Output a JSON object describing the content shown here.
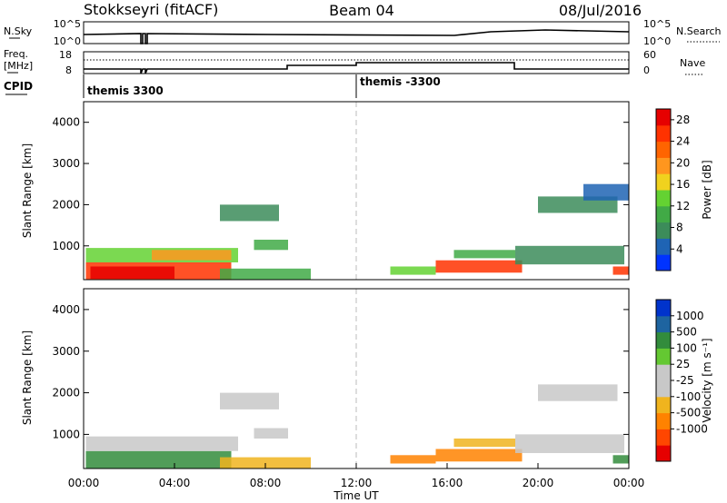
{
  "header": {
    "station": "Stokkseyri (fitACF)",
    "beam": "Beam 04",
    "date": "08/Jul/2016"
  },
  "noise_panel": {
    "left_label": "N.Sky",
    "right_label": "N.Search",
    "left_ticks": [
      "10^5",
      "10^0"
    ],
    "right_ticks": [
      "10^5",
      "10^0"
    ]
  },
  "freq_panel": {
    "left_label_1": "Freq.",
    "left_label_2": "[MHz]",
    "right_label": "Nave",
    "left_ticks": [
      "18",
      "8"
    ],
    "right_ticks": [
      "60",
      "0"
    ]
  },
  "cpid": {
    "label": "CPID",
    "segments": [
      "themis 3300",
      "themis -3300"
    ]
  },
  "colors": {
    "power_scale": [
      "#0033ff",
      "#1f64b4",
      "#3c8c5a",
      "#41aa46",
      "#64d232",
      "#f0d21e",
      "#ff961e",
      "#ff6400",
      "#ff3200",
      "#e60000"
    ],
    "velocity_scale": [
      "#e60000",
      "#ff4600",
      "#ff8200",
      "#f0b41e",
      "#c8c8c8",
      "#c8c8c8",
      "#64c832",
      "#328c3c",
      "#1e64a0",
      "#0033cc"
    ]
  },
  "chart_data": [
    {
      "type": "heatmap",
      "name": "Power",
      "xlabel": "",
      "ylabel": "Slant Range [km]",
      "xlim_hours": [
        0,
        24
      ],
      "ylim": [
        180,
        4500
      ],
      "yticks": [
        "1000",
        "2000",
        "3000",
        "4000"
      ],
      "colorbar_label": "Power [dB]",
      "colorbar_ticks": [
        "4",
        "8",
        "12",
        "16",
        "20",
        "24",
        "28"
      ],
      "colorbar_range": [
        0,
        30
      ],
      "blobs": [
        {
          "t0": 0.1,
          "t1": 6.5,
          "r0": 180,
          "r1": 600,
          "v": 24
        },
        {
          "t0": 0.3,
          "t1": 4.0,
          "r0": 200,
          "r1": 500,
          "v": 29
        },
        {
          "t0": 0.1,
          "t1": 6.8,
          "r0": 600,
          "r1": 950,
          "v": 13
        },
        {
          "t0": 3.0,
          "t1": 6.5,
          "r0": 650,
          "r1": 900,
          "v": 18
        },
        {
          "t0": 6.0,
          "t1": 10.0,
          "r0": 180,
          "r1": 450,
          "v": 9
        },
        {
          "t0": 6.0,
          "t1": 8.6,
          "r0": 1600,
          "r1": 2000,
          "v": 6
        },
        {
          "t0": 7.5,
          "t1": 9.0,
          "r0": 900,
          "r1": 1150,
          "v": 9
        },
        {
          "t0": 13.5,
          "t1": 15.5,
          "r0": 300,
          "r1": 500,
          "v": 12
        },
        {
          "t0": 15.5,
          "t1": 19.3,
          "r0": 350,
          "r1": 650,
          "v": 26
        },
        {
          "t0": 16.3,
          "t1": 19.0,
          "r0": 700,
          "r1": 900,
          "v": 11
        },
        {
          "t0": 19.0,
          "t1": 23.8,
          "r0": 550,
          "r1": 1000,
          "v": 7
        },
        {
          "t0": 20.0,
          "t1": 23.5,
          "r0": 1800,
          "r1": 2200,
          "v": 6
        },
        {
          "t0": 22.0,
          "t1": 24.0,
          "r0": 2100,
          "r1": 2500,
          "v": 4
        },
        {
          "t0": 23.3,
          "t1": 24.0,
          "r0": 300,
          "r1": 500,
          "v": 24
        }
      ]
    },
    {
      "type": "heatmap",
      "name": "Velocity",
      "xlabel": "Time UT",
      "ylabel": "Slant Range [km]",
      "xlim_hours": [
        0,
        24
      ],
      "xticks": [
        "00:00",
        "04:00",
        "08:00",
        "12:00",
        "16:00",
        "20:00",
        "00:00"
      ],
      "ylim": [
        180,
        4500
      ],
      "yticks": [
        "1000",
        "2000",
        "3000",
        "4000"
      ],
      "colorbar_label": "Velocity [m s⁻¹]",
      "colorbar_ticks": [
        "1000",
        "500",
        "100",
        "25",
        "-25",
        "-100",
        "-500",
        "-1000"
      ],
      "blobs": [
        {
          "t0": 0.1,
          "t1": 6.5,
          "r0": 180,
          "r1": 600,
          "v": 150
        },
        {
          "t0": 0.1,
          "t1": 6.8,
          "r0": 600,
          "r1": 950,
          "v": 0
        },
        {
          "t0": 6.0,
          "t1": 10.0,
          "r0": 180,
          "r1": 450,
          "v": -80
        },
        {
          "t0": 6.0,
          "t1": 8.6,
          "r0": 1600,
          "r1": 2000,
          "v": 0
        },
        {
          "t0": 7.5,
          "t1": 9.0,
          "r0": 900,
          "r1": 1150,
          "v": 0
        },
        {
          "t0": 13.5,
          "t1": 15.5,
          "r0": 300,
          "r1": 500,
          "v": -200
        },
        {
          "t0": 15.5,
          "t1": 19.3,
          "r0": 350,
          "r1": 650,
          "v": -250
        },
        {
          "t0": 16.3,
          "t1": 19.0,
          "r0": 700,
          "r1": 900,
          "v": -60
        },
        {
          "t0": 19.0,
          "t1": 23.8,
          "r0": 550,
          "r1": 1000,
          "v": 0
        },
        {
          "t0": 20.0,
          "t1": 23.5,
          "r0": 1800,
          "r1": 2200,
          "v": 0
        },
        {
          "t0": 23.3,
          "t1": 24.0,
          "r0": 300,
          "r1": 500,
          "v": 150
        }
      ]
    }
  ]
}
